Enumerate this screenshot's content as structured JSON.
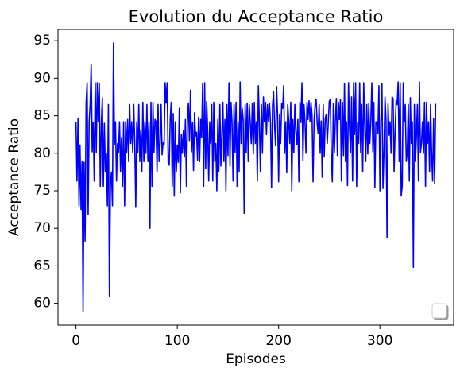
{
  "chart_data": {
    "type": "line",
    "title": "Evolution du Acceptance Ratio",
    "xlabel": "Episodes",
    "ylabel": "Acceptance Ratio",
    "series": [
      {
        "color": "#0000ff",
        "values": [
          84.2,
          76.3,
          84.6,
          73.0,
          81.1,
          72.5,
          78.9,
          58.9,
          78.8,
          68.3,
          86.8,
          89.4,
          71.8,
          84.2,
          86.5,
          91.9,
          80.2,
          84.1,
          76.3,
          89.4,
          80.1,
          89.4,
          84.2,
          89.3,
          75.6,
          83.8,
          87.4,
          75.6,
          84.0,
          77.5,
          80.0,
          73.0,
          86.5,
          61.0,
          75.8,
          77.5,
          73.0,
          94.7,
          81.2,
          84.2,
          76.3,
          81.3,
          80.1,
          84.2,
          77.5,
          82.1,
          75.6,
          84.2,
          73.0,
          84.2,
          80.1,
          84.5,
          78.9,
          86.5,
          81.3,
          84.2,
          80.1,
          86.5,
          81.3,
          72.8,
          84.2,
          80.1,
          86.5,
          78.9,
          83.0,
          77.5,
          86.8,
          78.9,
          84.2,
          80.0,
          86.5,
          78.9,
          84.1,
          70.0,
          86.8,
          75.6,
          86.8,
          80.1,
          84.5,
          84.2,
          77.5,
          86.5,
          78.9,
          81.3,
          86.5,
          79.8,
          81.4,
          81.2,
          89.4,
          86.7,
          89.4,
          78.8,
          78.4,
          84.5,
          86.8,
          75.6,
          85.3,
          74.3,
          84.2,
          77.5,
          81.1,
          78.8,
          86.0,
          74.7,
          82.5,
          80.0,
          83.0,
          79.5,
          84.5,
          75.6,
          84.5,
          86.7,
          81.6,
          88.4,
          80.2,
          84.1,
          77.7,
          85.4,
          82.3,
          82.8,
          79.1,
          84.8,
          78.9,
          84.5,
          82.1,
          89.3,
          75.6,
          89.4,
          78.0,
          86.9,
          82.8,
          76.3,
          84.2,
          81.3,
          86.5,
          76.3,
          86.8,
          78.9,
          81.3,
          75.0,
          84.5,
          77.5,
          86.5,
          78.3,
          82.5,
          86.8,
          78.9,
          84.5,
          75.0,
          86.5,
          79.7,
          89.4,
          78.3,
          86.8,
          84.2,
          76.3,
          86.5,
          80.1,
          86.8,
          75.6,
          84.2,
          77.5,
          89.5,
          81.3,
          86.0,
          84.5,
          72.0,
          86.5,
          80.1,
          86.7,
          78.9,
          86.5,
          84.1,
          81.3,
          86.6,
          79.9,
          86.8,
          81.3,
          84.2,
          76.3,
          89.0,
          84.2,
          77.5,
          86.5,
          80.0,
          87.5,
          84.2,
          86.8,
          82.5,
          86.5,
          84.3,
          86.7,
          84.0,
          75.4,
          86.5,
          88.2,
          83.7,
          81.0,
          88.9,
          84.9,
          76.2,
          85.2,
          81.3,
          86.6,
          86.0,
          89.0,
          80.0,
          84.2,
          77.4,
          86.5,
          84.2,
          81.3,
          86.8,
          75.0,
          84.5,
          80.1,
          86.5,
          83.0,
          81.2,
          84.5,
          76.2,
          86.8,
          84.1,
          89.4,
          79.0,
          86.5,
          84.2,
          80.0,
          86.8,
          84.5,
          87.0,
          84.2,
          86.8,
          85.0,
          76.2,
          84.3,
          86.5,
          87.2,
          84.1,
          82.6,
          86.5,
          80.0,
          84.3,
          76.8,
          86.5,
          79.5,
          84.6,
          85.2,
          81.3,
          84.1,
          86.9,
          87.2,
          79.9,
          76.2,
          86.6,
          80.1,
          84.5,
          87.3,
          79.7,
          86.8,
          84.5,
          87.2,
          76.3,
          86.8,
          79.7,
          89.3,
          78.9,
          84.2,
          75.7,
          89.4,
          83.3,
          80.1,
          87.5,
          76.3,
          89.4,
          82.5,
          89.4,
          75.6,
          84.1,
          81.3,
          89.4,
          80.1,
          86.5,
          77.5,
          89.4,
          83.6,
          78.9,
          86.5,
          79.9,
          86.6,
          81.3,
          84.2,
          89.4,
          80.2,
          86.8,
          75.4,
          84.2,
          84.1,
          82.7,
          89.0,
          75.0,
          84.2,
          89.3,
          75.3,
          80.1,
          87.5,
          84.5,
          68.8,
          86.6,
          82.4,
          84.2,
          80.0,
          87.5,
          87.3,
          77.5,
          83.0,
          87.0,
          86.5,
          89.5,
          78.9,
          89.4,
          74.3,
          75.6,
          89.4,
          84.2,
          86.5,
          78.9,
          80.1,
          86.5,
          76.3,
          87.4,
          81.3,
          84.2,
          64.8,
          86.5,
          78.9,
          82.1,
          86.5,
          76.3,
          89.5,
          80.1,
          81.3,
          84.2,
          80.0,
          86.8,
          75.6,
          86.8,
          81.3,
          84.2,
          77.5,
          86.5,
          80.1,
          76.3,
          84.6,
          76.0,
          86.6
        ]
      }
    ],
    "xlim": [
      -17.75,
      372.75
    ],
    "xticks": [
      0,
      100,
      200,
      300
    ],
    "ylim": [
      57.1,
      96.5
    ],
    "yticks": [
      60,
      65,
      70,
      75,
      80,
      85,
      90,
      95
    ],
    "grid": false
  }
}
